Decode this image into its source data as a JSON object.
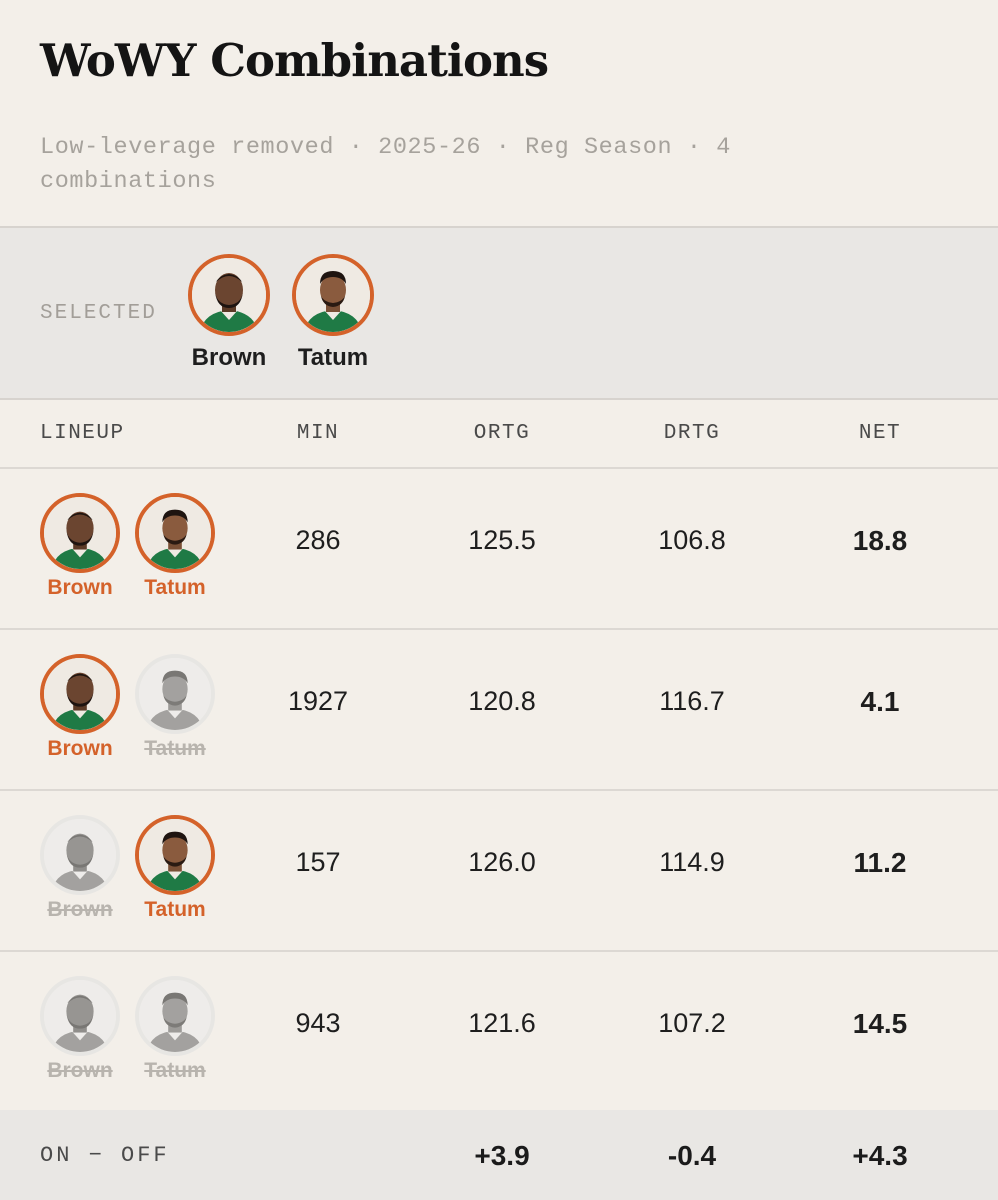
{
  "header": {
    "title": "WoWY Combinations",
    "subtitle": "Low-leverage removed · 2025-26 · Reg Season · 4 combinations"
  },
  "selected": {
    "label": "SELECTED",
    "players": [
      {
        "name": "Brown",
        "icon": "player-headshot-icon"
      },
      {
        "name": "Tatum",
        "icon": "player-headshot-icon"
      }
    ]
  },
  "table": {
    "columns": [
      "LINEUP",
      "MIN",
      "ORTG",
      "DRTG",
      "NET"
    ],
    "rows": [
      {
        "players": [
          {
            "name": "Brown",
            "on": true
          },
          {
            "name": "Tatum",
            "on": true
          }
        ],
        "min": "286",
        "ortg": "125.5",
        "drtg": "106.8",
        "net": "18.8"
      },
      {
        "players": [
          {
            "name": "Brown",
            "on": true
          },
          {
            "name": "Tatum",
            "on": false
          }
        ],
        "min": "1927",
        "ortg": "120.8",
        "drtg": "116.7",
        "net": "4.1"
      },
      {
        "players": [
          {
            "name": "Brown",
            "on": false
          },
          {
            "name": "Tatum",
            "on": true
          }
        ],
        "min": "157",
        "ortg": "126.0",
        "drtg": "114.9",
        "net": "11.2"
      },
      {
        "players": [
          {
            "name": "Brown",
            "on": false
          },
          {
            "name": "Tatum",
            "on": false
          }
        ],
        "min": "943",
        "ortg": "121.6",
        "drtg": "107.2",
        "net": "14.5"
      }
    ]
  },
  "footer": {
    "label": "ON − OFF",
    "ortg": "+3.9",
    "drtg": "-0.4",
    "net": "+4.3"
  },
  "colors": {
    "accent": "#d4622a",
    "background": "#f3efe9",
    "band": "#e9e7e4",
    "muted": "#a6a29c"
  }
}
